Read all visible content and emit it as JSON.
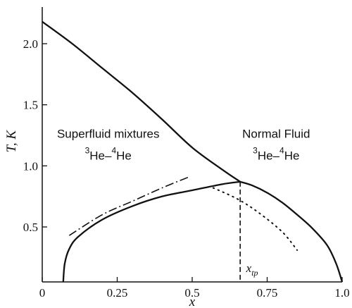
{
  "chart_data": {
    "type": "line",
    "title": "",
    "xlabel": "x",
    "ylabel": "T, K",
    "xlim": [
      0,
      1.0
    ],
    "ylim": [
      0.05,
      2.3
    ],
    "x_ticks": [
      0,
      0.25,
      0.5,
      0.75,
      1.0
    ],
    "x_tick_labels": [
      "0",
      "0.25",
      "0.5",
      "0.75",
      "1.0"
    ],
    "y_ticks": [
      0.5,
      1.0,
      1.5,
      2.0
    ],
    "y_tick_labels": [
      "0.5",
      "1.0",
      "1.5",
      "2.0"
    ],
    "grid": false,
    "legend": "none",
    "series": [
      {
        "style": "solid",
        "x": [
          0.0,
          0.1,
          0.2,
          0.3,
          0.4,
          0.5,
          0.6,
          0.66
        ],
        "y": [
          2.18,
          2.0,
          1.8,
          1.6,
          1.38,
          1.15,
          0.97,
          0.87
        ]
      },
      {
        "style": "solid",
        "x": [
          0.07,
          0.075,
          0.09,
          0.12,
          0.2,
          0.3,
          0.4,
          0.5,
          0.6,
          0.66
        ],
        "y": [
          0.05,
          0.2,
          0.32,
          0.42,
          0.56,
          0.67,
          0.75,
          0.8,
          0.85,
          0.87
        ]
      },
      {
        "style": "solid",
        "x": [
          0.66,
          0.7,
          0.75,
          0.8,
          0.85,
          0.9,
          0.95,
          0.98,
          1.0
        ],
        "y": [
          0.87,
          0.84,
          0.78,
          0.7,
          0.6,
          0.49,
          0.35,
          0.2,
          0.05
        ]
      },
      {
        "style": "dash-dot",
        "x": [
          0.09,
          0.2,
          0.3,
          0.4,
          0.49
        ],
        "y": [
          0.43,
          0.6,
          0.71,
          0.82,
          0.91
        ]
      },
      {
        "style": "dotted",
        "x": [
          0.57,
          0.65,
          0.72,
          0.8,
          0.85
        ],
        "y": [
          0.82,
          0.73,
          0.62,
          0.46,
          0.31
        ]
      },
      {
        "style": "dashed",
        "x": [
          0.66,
          0.66
        ],
        "y": [
          0.87,
          0.05
        ]
      }
    ],
    "annotations": [
      {
        "id": "superfluid",
        "line1": "Superfluid mixtures",
        "line2": {
          "sup_a": "3",
          "base_a": "He–",
          "sup_b": "4",
          "base_b": "He"
        },
        "x": 0.22,
        "y": 1.23
      },
      {
        "id": "normal",
        "line1": "Normal Fluid",
        "line2": {
          "sup_a": "3",
          "base_a": "He–",
          "sup_b": "4",
          "base_b": "He"
        },
        "x": 0.78,
        "y": 1.23
      },
      {
        "id": "xtp",
        "base": "x",
        "sub": "tp",
        "x": 0.68,
        "y": 0.13
      }
    ]
  }
}
